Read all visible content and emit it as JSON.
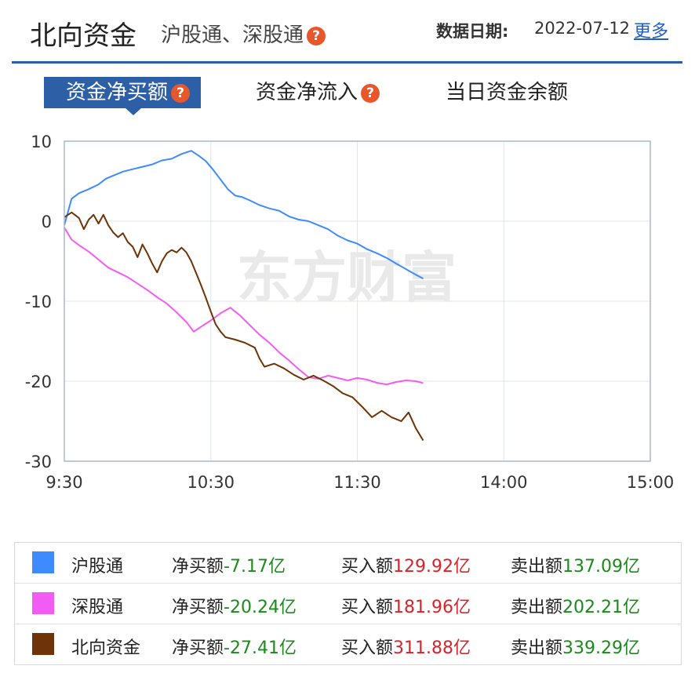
{
  "header": {
    "title": "北向资金",
    "subtitle": "沪股通、深股通",
    "help_glyph": "?",
    "date_label": "数据日期:",
    "date_value": "2022-07-12",
    "more_label": "更多"
  },
  "tabs": [
    {
      "label": "资金净买额",
      "active": true,
      "has_help": true
    },
    {
      "label": "资金净流入",
      "active": false,
      "has_help": true
    },
    {
      "label": "当日资金余额",
      "active": false,
      "has_help": false
    }
  ],
  "watermark": "东方财富",
  "chart_data": {
    "type": "line",
    "title": "",
    "xlabel": "",
    "ylabel": "",
    "x_ticks": [
      "9:30",
      "10:30",
      "11:30",
      "14:00",
      "15:00"
    ],
    "y_ticks": [
      10,
      0,
      -10,
      -20,
      -30
    ],
    "ylim": [
      -30,
      10
    ],
    "grid": true,
    "x_unit": "trading minutes from 9:30",
    "xlim": [
      0,
      240
    ],
    "series": [
      {
        "name": "沪股通",
        "color": "#3d8bff",
        "points": [
          [
            0,
            -0.5
          ],
          [
            3,
            2.8
          ],
          [
            6,
            3.5
          ],
          [
            10,
            4.0
          ],
          [
            14,
            4.6
          ],
          [
            17,
            5.3
          ],
          [
            20,
            5.7
          ],
          [
            24,
            6.2
          ],
          [
            28,
            6.5
          ],
          [
            32,
            6.8
          ],
          [
            36,
            7.1
          ],
          [
            40,
            7.6
          ],
          [
            44,
            7.8
          ],
          [
            48,
            8.4
          ],
          [
            52,
            8.8
          ],
          [
            55,
            8.2
          ],
          [
            58,
            7.5
          ],
          [
            61,
            6.4
          ],
          [
            64,
            5.2
          ],
          [
            67,
            4.0
          ],
          [
            70,
            3.2
          ],
          [
            73,
            3.0
          ],
          [
            76,
            2.6
          ],
          [
            80,
            2.0
          ],
          [
            84,
            1.6
          ],
          [
            88,
            1.3
          ],
          [
            92,
            0.6
          ],
          [
            96,
            0.2
          ],
          [
            100,
            0.0
          ],
          [
            104,
            -0.5
          ],
          [
            108,
            -1.0
          ],
          [
            112,
            -1.8
          ],
          [
            116,
            -2.4
          ],
          [
            120,
            -2.8
          ],
          [
            124,
            -3.5
          ],
          [
            128,
            -4.0
          ],
          [
            132,
            -4.6
          ],
          [
            136,
            -5.3
          ],
          [
            140,
            -6.0
          ],
          [
            144,
            -6.7
          ],
          [
            147,
            -7.17
          ]
        ]
      },
      {
        "name": "深股通",
        "color": "#f35cf3",
        "points": [
          [
            0,
            -0.8
          ],
          [
            3,
            -2.3
          ],
          [
            6,
            -3.0
          ],
          [
            10,
            -3.8
          ],
          [
            14,
            -4.8
          ],
          [
            18,
            -5.8
          ],
          [
            22,
            -6.4
          ],
          [
            26,
            -7.0
          ],
          [
            30,
            -7.8
          ],
          [
            34,
            -8.6
          ],
          [
            38,
            -9.5
          ],
          [
            42,
            -10.3
          ],
          [
            46,
            -11.4
          ],
          [
            50,
            -12.6
          ],
          [
            53,
            -13.8
          ],
          [
            56,
            -13.2
          ],
          [
            60,
            -12.4
          ],
          [
            64,
            -11.5
          ],
          [
            68,
            -10.8
          ],
          [
            72,
            -11.8
          ],
          [
            76,
            -13.0
          ],
          [
            80,
            -14.2
          ],
          [
            84,
            -15.2
          ],
          [
            88,
            -16.4
          ],
          [
            92,
            -17.4
          ],
          [
            96,
            -18.5
          ],
          [
            100,
            -19.5
          ],
          [
            104,
            -19.7
          ],
          [
            108,
            -19.3
          ],
          [
            112,
            -19.6
          ],
          [
            116,
            -19.9
          ],
          [
            120,
            -19.6
          ],
          [
            124,
            -19.8
          ],
          [
            128,
            -20.2
          ],
          [
            132,
            -20.4
          ],
          [
            136,
            -20.1
          ],
          [
            140,
            -19.9
          ],
          [
            144,
            -20.0
          ],
          [
            147,
            -20.24
          ]
        ]
      },
      {
        "name": "北向资金",
        "color": "#6e3306",
        "points": [
          [
            0,
            0.5
          ],
          [
            3,
            1.1
          ],
          [
            6,
            0.4
          ],
          [
            8,
            -1.0
          ],
          [
            10,
            0.2
          ],
          [
            12,
            0.8
          ],
          [
            14,
            -0.3
          ],
          [
            16,
            0.8
          ],
          [
            18,
            -0.5
          ],
          [
            20,
            -1.4
          ],
          [
            22,
            -2.0
          ],
          [
            24,
            -1.5
          ],
          [
            26,
            -2.6
          ],
          [
            28,
            -3.2
          ],
          [
            30,
            -4.5
          ],
          [
            32,
            -2.9
          ],
          [
            34,
            -4.0
          ],
          [
            36,
            -5.3
          ],
          [
            38,
            -6.4
          ],
          [
            40,
            -5.0
          ],
          [
            42,
            -4.0
          ],
          [
            44,
            -3.6
          ],
          [
            46,
            -3.9
          ],
          [
            48,
            -3.3
          ],
          [
            50,
            -3.9
          ],
          [
            52,
            -5.0
          ],
          [
            54,
            -6.5
          ],
          [
            56,
            -8.0
          ],
          [
            58,
            -9.6
          ],
          [
            60,
            -11.3
          ],
          [
            62,
            -12.9
          ],
          [
            64,
            -13.8
          ],
          [
            66,
            -14.5
          ],
          [
            70,
            -14.8
          ],
          [
            74,
            -15.2
          ],
          [
            78,
            -15.8
          ],
          [
            80,
            -17.2
          ],
          [
            82,
            -18.2
          ],
          [
            86,
            -17.8
          ],
          [
            90,
            -18.4
          ],
          [
            94,
            -19.2
          ],
          [
            98,
            -19.8
          ],
          [
            102,
            -19.3
          ],
          [
            106,
            -19.9
          ],
          [
            110,
            -20.6
          ],
          [
            114,
            -21.5
          ],
          [
            118,
            -22.0
          ],
          [
            122,
            -23.2
          ],
          [
            126,
            -24.5
          ],
          [
            130,
            -23.7
          ],
          [
            134,
            -24.5
          ],
          [
            138,
            -25.0
          ],
          [
            141,
            -23.9
          ],
          [
            144,
            -25.9
          ],
          [
            147,
            -27.41
          ]
        ]
      }
    ]
  },
  "legend": [
    {
      "name": "沪股通",
      "color": "#3d8bff",
      "net_label": "净买额",
      "net_value": "-7.17亿",
      "buy_label": "买入额",
      "buy_value": "129.92亿",
      "sell_label": "卖出额",
      "sell_value": "137.09亿"
    },
    {
      "name": "深股通",
      "color": "#f35cf3",
      "net_label": "净买额",
      "net_value": "-20.24亿",
      "buy_label": "买入额",
      "buy_value": "181.96亿",
      "sell_label": "卖出额",
      "sell_value": "202.21亿"
    },
    {
      "name": "北向资金",
      "color": "#6e3306",
      "net_label": "净买额",
      "net_value": "-27.41亿",
      "buy_label": "买入额",
      "buy_value": "311.88亿",
      "sell_label": "卖出额",
      "sell_value": "339.29亿"
    }
  ]
}
